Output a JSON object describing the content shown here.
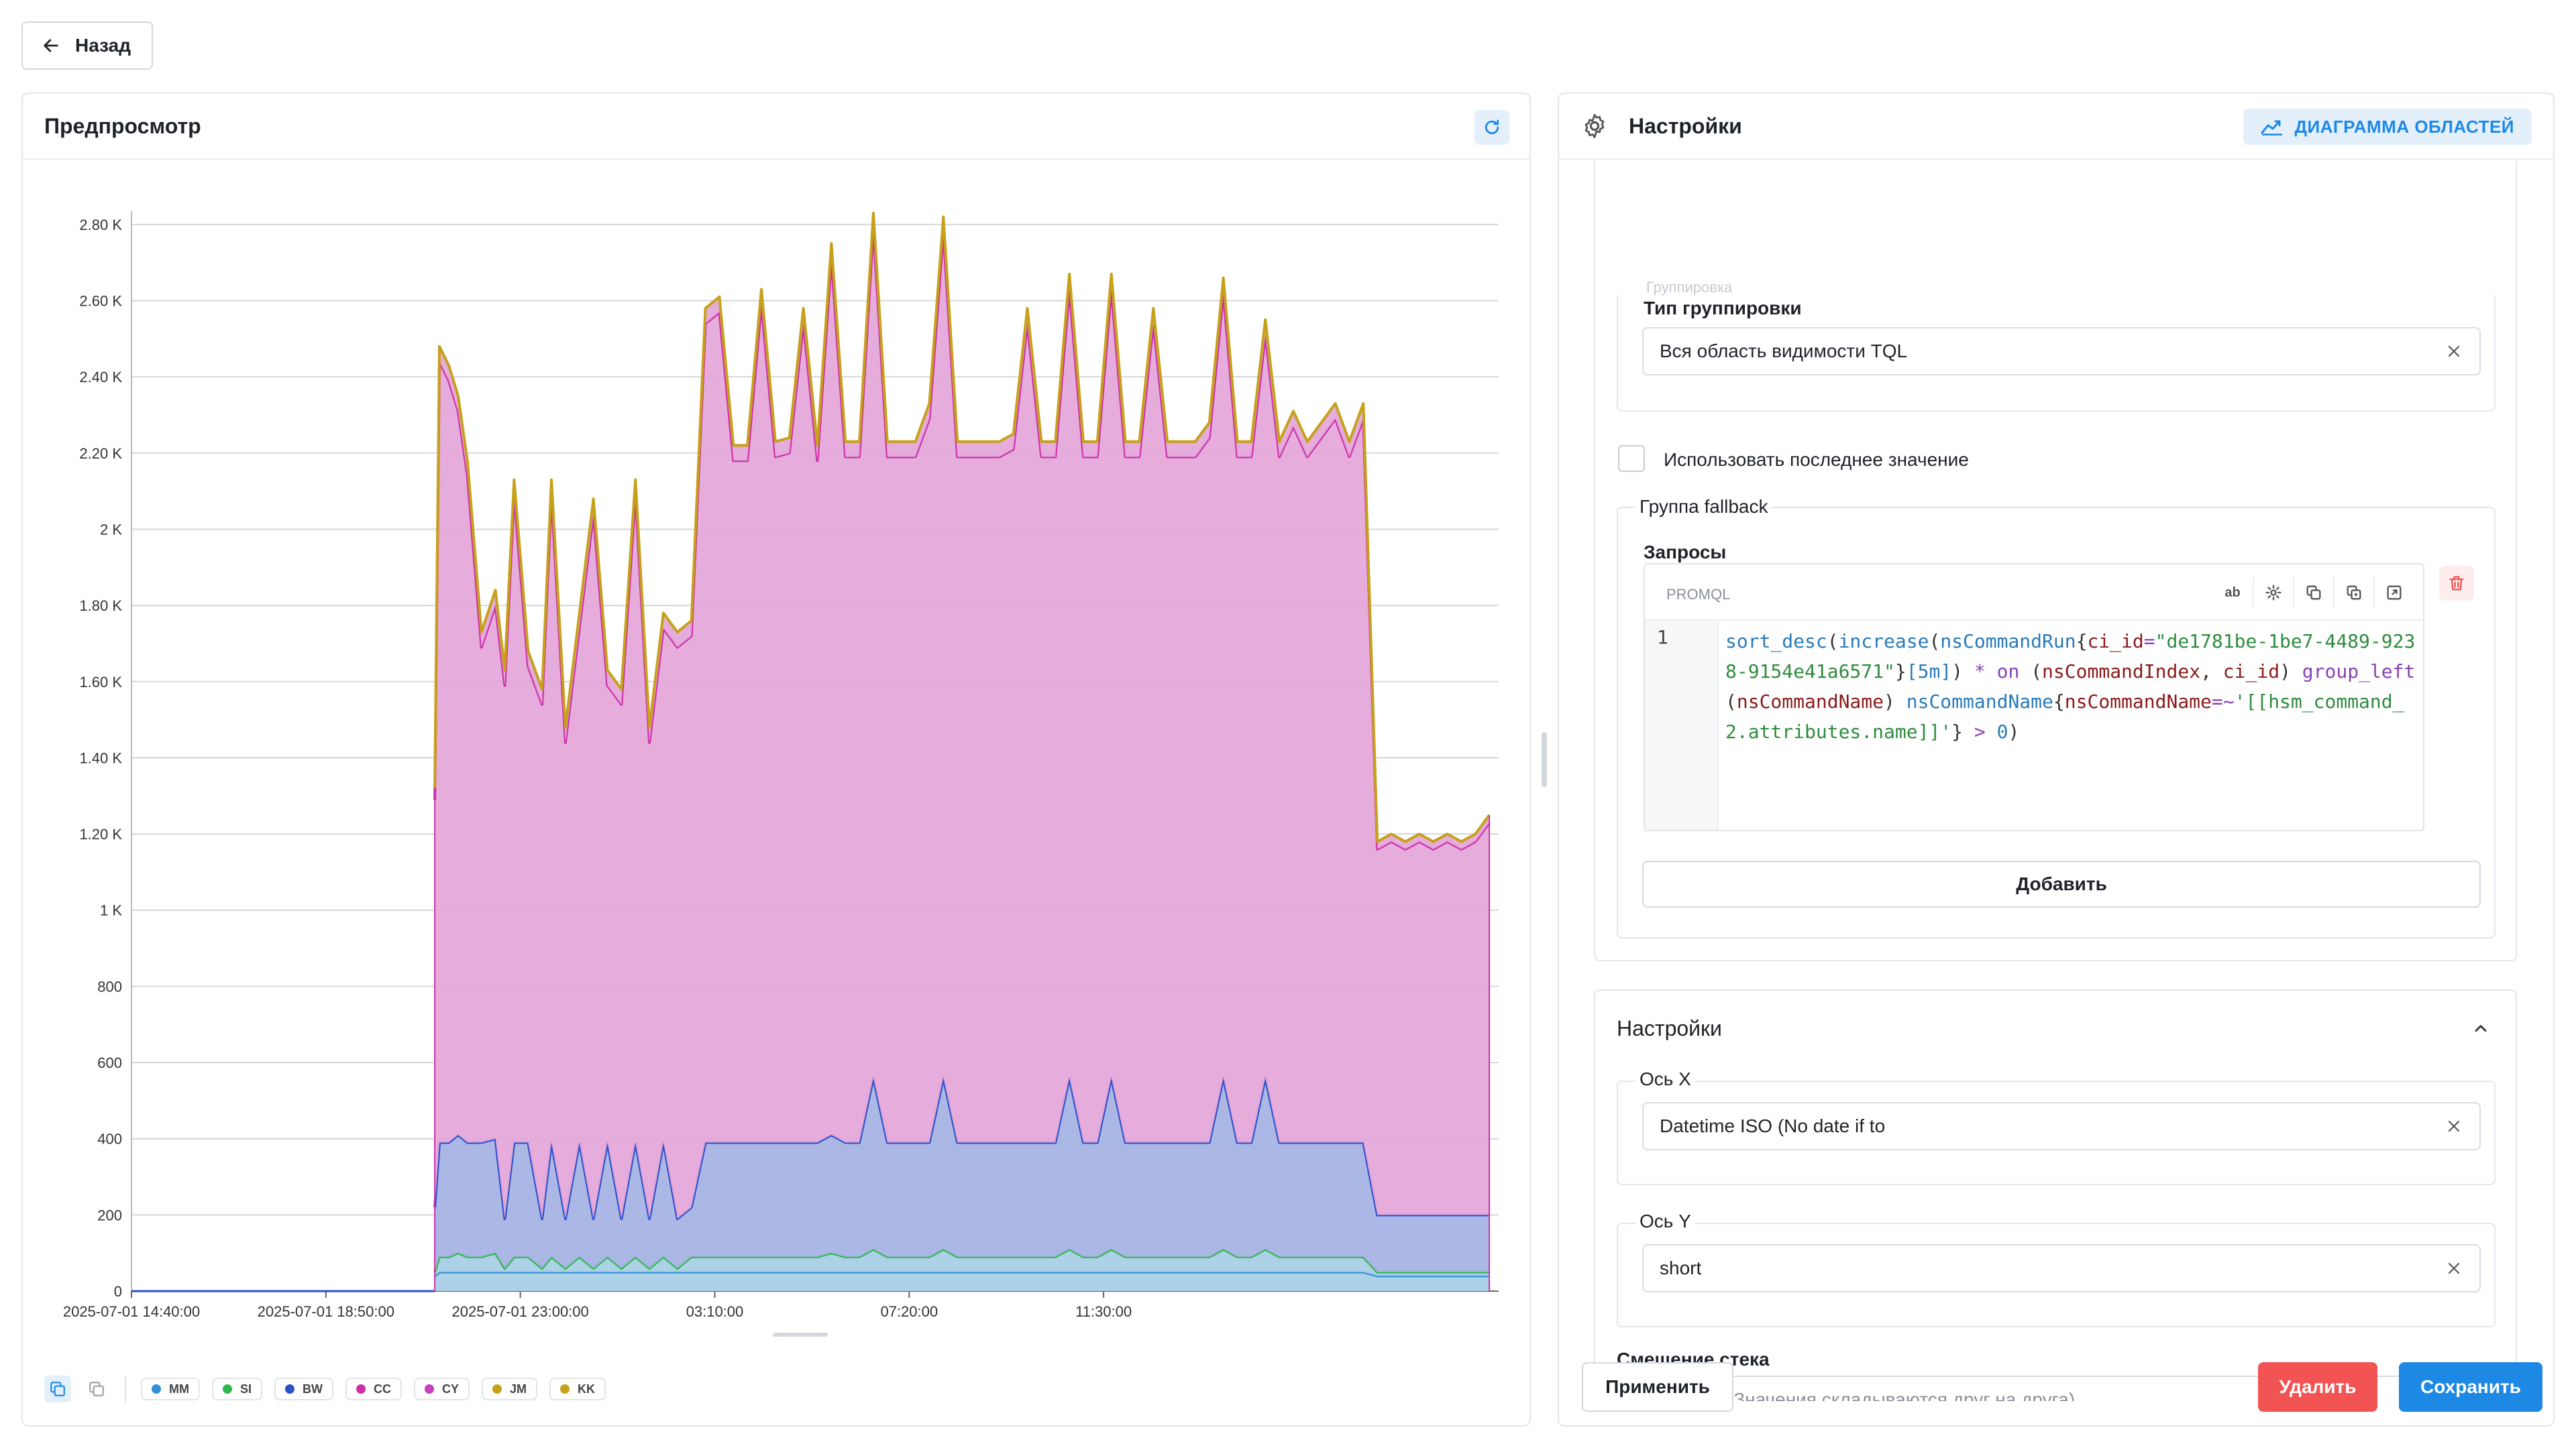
{
  "nav": {
    "back_label": "Назад"
  },
  "preview": {
    "title": "Предпросмотр",
    "legend": [
      {
        "name": "MM",
        "color": "#2f8fd6"
      },
      {
        "name": "SI",
        "color": "#2eb84a"
      },
      {
        "name": "BW",
        "color": "#2b4fc9"
      },
      {
        "name": "CC",
        "color": "#cc2fa8"
      },
      {
        "name": "CY",
        "color": "#c33fc0"
      },
      {
        "name": "JM",
        "color": "#c7a11a"
      },
      {
        "name": "KK",
        "color": "#c7a11a"
      }
    ]
  },
  "chart_data": {
    "type": "area",
    "stacked": true,
    "grid": "horizontal",
    "y_ticks": [
      "0",
      "200",
      "400",
      "600",
      "800",
      "1 K",
      "1.20 K",
      "1.40 K",
      "1.60 K",
      "1.80 K",
      "2 K",
      "2.20 K",
      "2.40 K",
      "2.60 K",
      "2.80 K"
    ],
    "ylim": [
      0,
      2900
    ],
    "x_ticks": [
      "2025-07-01 14:40:00",
      "2025-07-01 18:50:00",
      "2025-07-01 23:00:00",
      "03:10:00",
      "07:20:00",
      "11:30:00"
    ],
    "x_range_hours": [
      0,
      29.3
    ],
    "time_hours": [
      6.5,
      6.6,
      6.8,
      7.0,
      7.2,
      7.5,
      7.8,
      8.0,
      8.2,
      8.5,
      8.8,
      9.0,
      9.3,
      9.6,
      9.9,
      10.2,
      10.5,
      10.8,
      11.1,
      11.4,
      11.7,
      12.0,
      12.3,
      12.6,
      12.9,
      13.2,
      13.5,
      13.8,
      14.1,
      14.4,
      14.7,
      15.0,
      15.3,
      15.6,
      15.9,
      16.2,
      16.5,
      16.8,
      17.1,
      17.4,
      17.7,
      18.0,
      18.3,
      18.6,
      18.9,
      19.2,
      19.5,
      19.8,
      20.1,
      20.4,
      20.7,
      21.0,
      21.3,
      21.6,
      21.9,
      22.2,
      22.5,
      22.8,
      23.1,
      23.4,
      23.7,
      24.0,
      24.3,
      24.6,
      24.9,
      25.2,
      25.5,
      25.8,
      26.1,
      26.4,
      26.7,
      27.0,
      27.3,
      27.6,
      27.9,
      28.2,
      28.5,
      28.8,
      29.1
    ],
    "series": [
      {
        "name": "MM",
        "values": [
          40,
          50,
          50,
          50,
          50,
          50,
          50,
          50,
          50,
          50,
          50,
          50,
          50,
          50,
          50,
          50,
          50,
          50,
          50,
          50,
          50,
          50,
          50,
          50,
          50,
          50,
          50,
          50,
          50,
          50,
          50,
          50,
          50,
          50,
          50,
          50,
          50,
          50,
          50,
          50,
          50,
          50,
          50,
          50,
          50,
          50,
          50,
          50,
          50,
          50,
          50,
          50,
          50,
          50,
          50,
          50,
          50,
          50,
          50,
          50,
          50,
          50,
          50,
          50,
          50,
          50,
          50,
          50,
          50,
          50,
          40,
          40,
          40,
          40,
          40,
          40,
          40,
          40,
          40
        ]
      },
      {
        "name": "SI",
        "values": [
          10,
          40,
          40,
          50,
          40,
          40,
          50,
          10,
          40,
          40,
          10,
          40,
          10,
          40,
          10,
          40,
          10,
          40,
          10,
          40,
          10,
          40,
          40,
          40,
          40,
          40,
          40,
          40,
          40,
          40,
          40,
          50,
          40,
          40,
          60,
          40,
          40,
          40,
          40,
          60,
          40,
          40,
          40,
          40,
          40,
          40,
          40,
          40,
          60,
          40,
          40,
          60,
          40,
          40,
          40,
          40,
          40,
          40,
          40,
          60,
          40,
          40,
          60,
          40,
          40,
          40,
          40,
          40,
          40,
          40,
          10,
          10,
          10,
          10,
          10,
          10,
          10,
          10,
          10
        ]
      },
      {
        "name": "BW",
        "values": [
          170,
          300,
          300,
          310,
          300,
          300,
          300,
          130,
          300,
          300,
          130,
          300,
          130,
          300,
          130,
          300,
          130,
          300,
          130,
          300,
          130,
          130,
          300,
          300,
          300,
          300,
          300,
          300,
          300,
          300,
          300,
          310,
          300,
          300,
          450,
          300,
          300,
          300,
          300,
          450,
          300,
          300,
          300,
          300,
          300,
          300,
          300,
          300,
          450,
          300,
          300,
          450,
          300,
          300,
          300,
          300,
          300,
          300,
          300,
          450,
          300,
          300,
          450,
          300,
          300,
          300,
          300,
          300,
          300,
          300,
          150,
          150,
          150,
          150,
          150,
          150,
          150,
          150,
          150
        ]
      },
      {
        "name": "CC",
        "values": [
          1070,
          2050,
          2000,
          1900,
          1750,
          1300,
          1400,
          1400,
          1700,
          1250,
          1350,
          1700,
          1250,
          1350,
          1850,
          1200,
          1350,
          1700,
          1250,
          1350,
          1500,
          1500,
          2150,
          2180,
          1790,
          1790,
          2200,
          1800,
          1810,
          2150,
          1790,
          2300,
          1800,
          1800,
          2230,
          1800,
          1800,
          1800,
          1900,
          2220,
          1800,
          1800,
          1800,
          1800,
          1820,
          2150,
          1800,
          1800,
          2070,
          1800,
          1800,
          2070,
          1800,
          1800,
          2150,
          1800,
          1800,
          1800,
          1850,
          2060,
          1800,
          1800,
          1950,
          1800,
          1880,
          1800,
          1850,
          1900,
          1800,
          1900,
          960,
          980,
          960,
          980,
          960,
          980,
          960,
          980,
          1030
        ]
      },
      {
        "name": "CY",
        "values": [
          0,
          0,
          0,
          0,
          0,
          0,
          0,
          0,
          0,
          0,
          0,
          0,
          0,
          0,
          0,
          0,
          0,
          0,
          0,
          0,
          0,
          0,
          0,
          0,
          0,
          0,
          0,
          0,
          0,
          0,
          0,
          0,
          0,
          0,
          0,
          0,
          0,
          0,
          0,
          0,
          0,
          0,
          0,
          0,
          0,
          0,
          0,
          0,
          0,
          0,
          0,
          0,
          0,
          0,
          0,
          0,
          0,
          0,
          0,
          0,
          0,
          0,
          0,
          0,
          0,
          0,
          0,
          0,
          0,
          0,
          0,
          0,
          0,
          0,
          0,
          0,
          0,
          0,
          0
        ]
      },
      {
        "name": "JM",
        "values": [
          0,
          0,
          0,
          0,
          0,
          0,
          0,
          0,
          0,
          0,
          0,
          0,
          0,
          0,
          0,
          0,
          0,
          0,
          0,
          0,
          0,
          0,
          0,
          0,
          0,
          0,
          0,
          0,
          0,
          0,
          0,
          0,
          0,
          0,
          0,
          0,
          0,
          0,
          0,
          0,
          0,
          0,
          0,
          0,
          0,
          0,
          0,
          0,
          0,
          0,
          0,
          0,
          0,
          0,
          0,
          0,
          0,
          0,
          0,
          0,
          0,
          0,
          0,
          0,
          0,
          0,
          0,
          0,
          0,
          0,
          0,
          0,
          0,
          0,
          0,
          0,
          0,
          0,
          0
        ]
      },
      {
        "name": "KK",
        "values": [
          30,
          40,
          40,
          40,
          40,
          40,
          40,
          40,
          40,
          40,
          40,
          40,
          40,
          40,
          40,
          40,
          40,
          40,
          40,
          40,
          40,
          40,
          40,
          40,
          40,
          40,
          40,
          40,
          40,
          40,
          40,
          40,
          40,
          40,
          40,
          40,
          40,
          40,
          40,
          40,
          40,
          40,
          40,
          40,
          40,
          40,
          40,
          40,
          40,
          40,
          40,
          40,
          40,
          40,
          40,
          40,
          40,
          40,
          40,
          40,
          40,
          40,
          40,
          40,
          40,
          40,
          40,
          40,
          40,
          40,
          20,
          20,
          20,
          20,
          20,
          20,
          20,
          20,
          20
        ]
      }
    ],
    "fills": {
      "MM": "#a9cfe6",
      "SI": "#a9cfe6",
      "BW": "#a6b3e4",
      "CC": "#e4a8da",
      "KK": "#e4a8da"
    },
    "strokes": {
      "MM": "#2f8fd6",
      "SI": "#2eb84a",
      "BW": "#2b4fc9",
      "CC": "#cc2fa8",
      "KK": "#c7a11a"
    }
  },
  "settings": {
    "title": "Настройки",
    "chart_type_label": "ДИАГРАММА ОБЛАСТЕЙ",
    "faded_group_label": "Группировка",
    "grouping_type_label": "Тип группировки",
    "grouping_type_value": "Вся область видимости TQL",
    "use_last_value_label": "Использовать последнее значение",
    "fallback_group_label": "Группа fallback",
    "queries_label": "Запросы",
    "editor": {
      "lang": "PROMQL",
      "tool_ab": "ab",
      "line_no": "1"
    },
    "add_button": "Добавить",
    "section_title": "Настройки",
    "x_axis_label": "Ось X",
    "x_axis_value": "Datetime ISO (No date if to",
    "y_axis_label": "Ось Y",
    "y_axis_value": "short",
    "stack_offset_label": "Смещение стека",
    "stack_offset_value": "Сложение (Значения складываются друг на друга)"
  },
  "footer": {
    "apply": "Применить",
    "delete": "Удалить",
    "save": "Сохранить"
  }
}
